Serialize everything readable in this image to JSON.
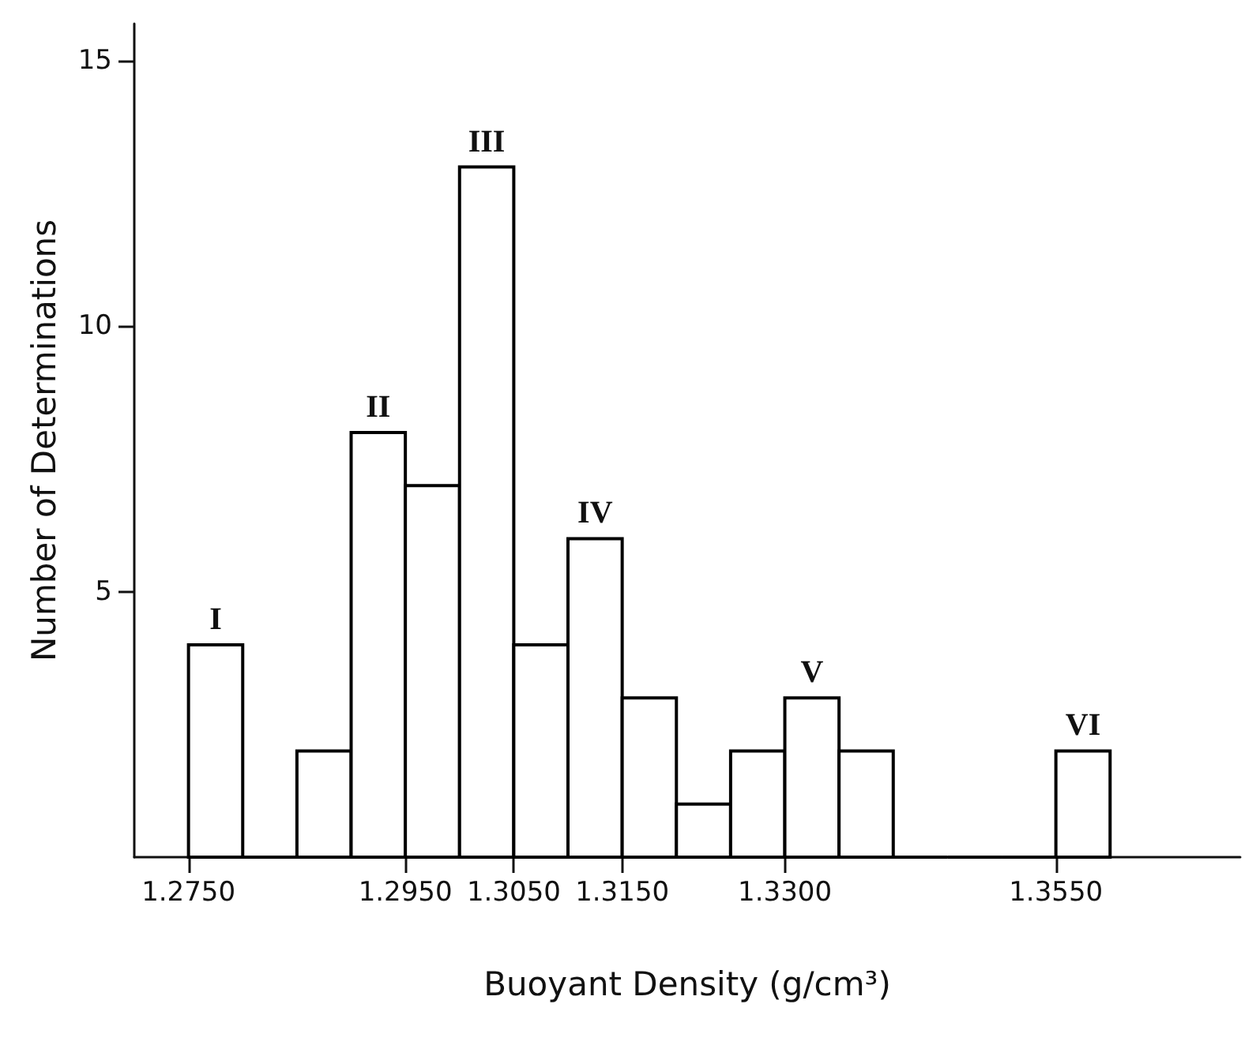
{
  "chart_data": {
    "type": "histogram",
    "xlabel": "Buoyant Density (g/cm³)",
    "ylabel": "Number of Determinations",
    "bins": [
      1.275,
      1.28,
      1.285,
      1.29,
      1.295,
      1.3,
      1.305,
      1.31,
      1.315,
      1.32,
      1.325,
      1.33,
      1.335,
      1.34,
      1.345,
      1.35,
      1.355,
      1.36
    ],
    "values": [
      4,
      0,
      2,
      8,
      7,
      13,
      4,
      6,
      3,
      1,
      2,
      3,
      2,
      0,
      0,
      0,
      2
    ],
    "color": "#000000",
    "xlim": [
      1.27,
      1.372
    ],
    "xticks": [
      {
        "value": 1.275,
        "label": "1.2750"
      },
      {
        "value": 1.295,
        "label": "1.2950"
      },
      {
        "value": 1.305,
        "label": "1.3050"
      },
      {
        "value": 1.315,
        "label": "1.3150"
      },
      {
        "value": 1.33,
        "label": "1.3300"
      },
      {
        "value": 1.355,
        "label": "1.3550"
      }
    ],
    "ylim": [
      0,
      15.7
    ],
    "yticks": [
      5,
      10,
      15
    ],
    "grid": false,
    "annotations": [
      {
        "text": "I",
        "x": 1.2775,
        "y": 4
      },
      {
        "text": "II",
        "x": 1.2925,
        "y": 8
      },
      {
        "text": "III",
        "x": 1.3025,
        "y": 13
      },
      {
        "text": "IV",
        "x": 1.3125,
        "y": 6
      },
      {
        "text": "V",
        "x": 1.3325,
        "y": 3
      },
      {
        "text": "VI",
        "x": 1.3575,
        "y": 2
      }
    ]
  }
}
